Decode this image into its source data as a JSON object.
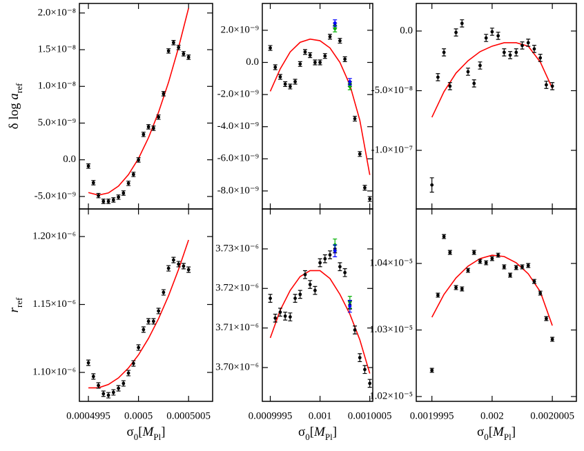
{
  "chart_data": [
    {
      "type": "scatter",
      "xlim": [
        0.00049941,
        0.00050074
      ],
      "xticks": [
        0.0004995,
        0.0005,
        0.0005005
      ],
      "xtick_labels": false,
      "ylim": [
        -6.7e-09,
        2.13e-08
      ],
      "yticks": [
        {
          "value": -5e-09,
          "label": "-5.0×10⁻⁹"
        },
        {
          "value": 0,
          "label": "0.0"
        },
        {
          "value": 5e-09,
          "label": "5.0×10⁻⁹"
        },
        {
          "value": 1e-08,
          "label": "1.0×10⁻⁸"
        },
        {
          "value": 1.5e-08,
          "label": "1.5×10⁻⁸"
        },
        {
          "value": 2e-08,
          "label": "2.0×10⁻⁸"
        }
      ],
      "ylabel": [
        {
          "text": "δ log "
        },
        {
          "text": "a",
          "italic": true
        },
        {
          "text": "ref",
          "sub": true
        }
      ],
      "series": [
        {
          "color": "#000000",
          "x": [
            0.0004995,
            0.00049955,
            0.0004996,
            0.00049965,
            0.0004997,
            0.00049975,
            0.0004998,
            0.00049985,
            0.0004999,
            0.00049995,
            0.0005,
            0.00050005,
            0.0005001,
            0.00050015,
            0.0005002,
            0.00050025,
            0.0005003,
            0.00050035,
            0.0005004,
            0.00050045,
            0.0005005
          ],
          "values": [
            -8.6e-10,
            -3.12e-09,
            -4.88e-09,
            -5.66e-09,
            -5.66e-09,
            -5.47e-09,
            -5.09e-09,
            -4.53e-09,
            -3.21e-09,
            -1.99e-09,
            -2e-11,
            3.46e-09,
            4.49e-09,
            4.3e-09,
            5.81e-09,
            9e-09,
            1.483e-08,
            1.596e-08,
            1.53e-08,
            1.445e-08,
            1.398e-08
          ],
          "errors": [
            3e-10,
            3e-10,
            3e-10,
            3e-10,
            3e-10,
            3e-10,
            3e-10,
            3e-10,
            3e-10,
            3e-10,
            3e-10,
            3e-10,
            3e-10,
            3e-10,
            3e-10,
            3e-10,
            3e-10,
            3e-10,
            3e-10,
            3e-10,
            3e-10
          ]
        }
      ],
      "fit": {
        "color": "#ff0000",
        "x": [
          0.0004995,
          0.0004996,
          0.0004997,
          0.0004998,
          0.0004999,
          0.0005,
          0.0005001,
          0.0005002,
          0.0005003,
          0.0005004,
          0.0005005
        ],
        "values": [
          -4.47e-09,
          -4.81e-09,
          -4.52e-09,
          -3.59e-09,
          -2.02e-09,
          1.7e-10,
          3.01e-09,
          6.47e-09,
          1.056e-08,
          1.53e-08,
          2.066e-08
        ]
      }
    },
    {
      "type": "scatter",
      "xlim": [
        0.00099942,
        0.00100053
      ],
      "xticks": [
        0.0009995,
        0.001,
        0.0010005
      ],
      "xtick_labels": false,
      "ylim": [
        -9.12e-09,
        3.67e-09
      ],
      "yticks": [
        {
          "value": -8e-09,
          "label": "-8.0×10⁻⁹"
        },
        {
          "value": -6e-09,
          "label": "-6.0×10⁻⁹"
        },
        {
          "value": -4e-09,
          "label": "-4.0×10⁻⁹"
        },
        {
          "value": -2e-09,
          "label": "-2.0×10⁻⁹"
        },
        {
          "value": 0,
          "label": "0.0"
        },
        {
          "value": 2e-09,
          "label": "2.0×10⁻⁹"
        }
      ],
      "series": [
        {
          "color": "#000000",
          "x": [
            0.0009995,
            0.00099955,
            0.0009996,
            0.00099965,
            0.0009997,
            0.00099975,
            0.0009998,
            0.00099985,
            0.0009999,
            0.00099995,
            0.001,
            0.00100005,
            0.0010001,
            0.00100015,
            0.0010002,
            0.00100025,
            0.0010003,
            0.00100035,
            0.0010004,
            0.00100045,
            0.0010005
          ],
          "values": [
            9e-10,
            -3e-10,
            -9e-10,
            -1.35e-09,
            -1.5e-09,
            -1.2e-09,
            -1e-10,
            6.5e-10,
            4.5e-10,
            0,
            0,
            4e-10,
            1.6e-09,
            2.3e-09,
            1.35e-09,
            2e-10,
            -1.35e-09,
            -3.5e-09,
            -5.7e-09,
            -7.8e-09,
            -8.5e-09
          ],
          "errors": [
            1.5e-10,
            1.5e-10,
            1.5e-10,
            1.5e-10,
            1.5e-10,
            1.5e-10,
            1.5e-10,
            1.5e-10,
            1.5e-10,
            1.5e-10,
            1.5e-10,
            1.5e-10,
            1.5e-10,
            1.5e-10,
            1.5e-10,
            1.5e-10,
            1.5e-10,
            1.5e-10,
            1.5e-10,
            1.5e-10,
            1.5e-10
          ]
        },
        {
          "color": "#00b000",
          "x": [
            0.00100015,
            0.0010003
          ],
          "values": [
            2.1e-09,
            -1.5e-09
          ],
          "errors": [
            2e-10,
            2e-10
          ]
        },
        {
          "color": "#0000ff",
          "x": [
            0.00100015,
            0.0010003
          ],
          "values": [
            2.45e-09,
            -1.2e-09
          ],
          "errors": [
            2e-10,
            2e-10
          ]
        }
      ],
      "fit": {
        "color": "#ff0000",
        "x": [
          0.0009995,
          0.0009996,
          0.0009997,
          0.0009998,
          0.0009999,
          0.001,
          0.0010001,
          0.0010002,
          0.0010003,
          0.0010004,
          0.0010005
        ],
        "values": [
          -1.8e-09,
          -4e-10,
          6.5e-10,
          1.25e-09,
          1.45e-09,
          1.35e-09,
          9e-10,
          0,
          -1.4e-09,
          -3.6e-09,
          -7e-09
        ]
      }
    },
    {
      "type": "scatter",
      "xlim": [
        0.00199937,
        0.0020007
      ],
      "xticks": [
        0.0019995,
        0.002,
        0.0020005
      ],
      "xtick_labels": false,
      "ylim": [
        -1.491e-07,
        2.31e-08
      ],
      "yticks": [
        {
          "value": -1e-07,
          "label": "-1.0×10⁻⁷"
        },
        {
          "value": -5e-08,
          "label": "-5.0×10⁻⁸"
        },
        {
          "value": 0,
          "label": "0.0"
        }
      ],
      "series": [
        {
          "color": "#000000",
          "x": [
            0.0019995,
            0.00199955,
            0.0019996,
            0.00199965,
            0.0019997,
            0.00199975,
            0.0019998,
            0.00199985,
            0.0019999,
            0.00199995,
            0.002,
            0.00200005,
            0.0020001,
            0.00200015,
            0.0020002,
            0.00200025,
            0.0020003,
            0.00200035,
            0.0020004,
            0.00200045,
            0.0020005
          ],
          "values": [
            -1.29e-07,
            -3.87e-08,
            -1.79e-08,
            -4.62e-08,
            -1.2e-09,
            6.4e-09,
            -3.41e-08,
            -4.39e-08,
            -2.89e-08,
            -5.8e-09,
            -6e-10,
            -4e-09,
            -1.79e-08,
            -2.02e-08,
            -1.79e-08,
            -1.21e-08,
            -9.8e-09,
            -1.5e-08,
            -2.25e-08,
            -4.51e-08,
            -4.62e-08
          ],
          "errors": [
            6e-09,
            3e-09,
            3e-09,
            3e-09,
            3e-09,
            3e-09,
            3e-09,
            3e-09,
            3e-09,
            3e-09,
            3e-09,
            3e-09,
            3e-09,
            3e-09,
            3e-09,
            3e-09,
            3e-09,
            3e-09,
            3e-09,
            3e-09,
            3e-09
          ]
        }
      ],
      "fit": {
        "color": "#ff0000",
        "x": [
          0.0019995,
          0.0019996,
          0.0019997,
          0.0019998,
          0.0019999,
          0.002,
          0.0020001,
          0.0020002,
          0.0020003,
          0.0020004,
          0.0020005
        ],
        "values": [
          -7.23e-08,
          -5.09e-08,
          -3.53e-08,
          -2.49e-08,
          -1.73e-08,
          -1.27e-08,
          -9.8e-09,
          -9.8e-09,
          -1.27e-08,
          -2.6e-08,
          -4.8e-08
        ]
      }
    },
    {
      "type": "scatter",
      "xlim": [
        0.00049941,
        0.00050074
      ],
      "xticks": [
        0.0004995,
        0.0005,
        0.0005005
      ],
      "xtick_labels": true,
      "ylim": [
        1.0787e-06,
        1.2203e-06
      ],
      "yticks": [
        {
          "value": 1.1e-06,
          "label": "1.10×10⁻⁶"
        },
        {
          "value": 1.15e-06,
          "label": "1.15×10⁻⁶"
        },
        {
          "value": 1.2e-06,
          "label": "1.20×10⁻⁶"
        }
      ],
      "ylabel": [
        {
          "text": "r",
          "italic": true
        },
        {
          "text": "ref",
          "sub": true
        }
      ],
      "xlabel": [
        {
          "text": "σ"
        },
        {
          "text": "0",
          "sub": true
        },
        {
          "text": "["
        },
        {
          "text": "M",
          "italic": true
        },
        {
          "text": "Pl",
          "sub": true
        },
        {
          "text": "]"
        }
      ],
      "series": [
        {
          "color": "#000000",
          "x": [
            0.0004995,
            0.00049955,
            0.0004996,
            0.00049965,
            0.0004997,
            0.00049975,
            0.0004998,
            0.00049985,
            0.0004999,
            0.00049995,
            0.0005,
            0.00050005,
            0.0005001,
            0.00050015,
            0.0005002,
            0.00050025,
            0.0005003,
            0.00050035,
            0.0005004,
            0.00050045,
            0.0005005
          ],
          "values": [
            1.1071e-06,
            1.097e-06,
            1.0904e-06,
            1.0843e-06,
            1.0832e-06,
            1.0853e-06,
            1.0883e-06,
            1.0919e-06,
            1.0995e-06,
            1.1066e-06,
            1.1183e-06,
            1.1315e-06,
            1.1376e-06,
            1.1376e-06,
            1.1452e-06,
            1.1589e-06,
            1.1766e-06,
            1.1827e-06,
            1.1797e-06,
            1.1782e-06,
            1.1756e-06
          ],
          "errors": [
            2e-09,
            2e-09,
            2e-09,
            2e-09,
            2e-09,
            2e-09,
            2e-09,
            2e-09,
            2e-09,
            2e-09,
            2e-09,
            2e-09,
            2e-09,
            2e-09,
            2e-09,
            2e-09,
            2e-09,
            2e-09,
            2e-09,
            2e-09,
            2e-09
          ]
        }
      ],
      "fit": {
        "color": "#ff0000",
        "x": [
          0.0004995,
          0.0004996,
          0.0004997,
          0.0004998,
          0.0004999,
          0.0005,
          0.0005001,
          0.0005002,
          0.0005003,
          0.0005004,
          0.0005005
        ],
        "values": [
          1.08863e-06,
          1.08863e-06,
          1.09112e-06,
          1.09594e-06,
          1.10325e-06,
          1.1129e-06,
          1.12503e-06,
          1.13949e-06,
          1.1564e-06,
          1.17579e-06,
          1.19746e-06
        ]
      }
    },
    {
      "type": "scatter",
      "xlim": [
        0.00099942,
        0.00100053
      ],
      "xticks": [
        0.0009995,
        0.001,
        0.0010005
      ],
      "xtick_labels": true,
      "ylim": [
        3.69145e-06,
        3.7401e-06
      ],
      "yticks": [
        {
          "value": 3.7e-06,
          "label": "3.70×10⁻⁶"
        },
        {
          "value": 3.71e-06,
          "label": "3.71×10⁻⁶"
        },
        {
          "value": 3.72e-06,
          "label": "3.72×10⁻⁶"
        },
        {
          "value": 3.73e-06,
          "label": "3.73×10⁻⁶"
        }
      ],
      "xlabel": [
        {
          "text": "σ"
        },
        {
          "text": "0",
          "sub": true
        },
        {
          "text": "["
        },
        {
          "text": "M",
          "italic": true
        },
        {
          "text": "Pl",
          "sub": true
        },
        {
          "text": "]"
        }
      ],
      "series": [
        {
          "color": "#000000",
          "x": [
            0.0009995,
            0.00099955,
            0.0009996,
            0.00099965,
            0.0009997,
            0.00099975,
            0.0009998,
            0.00099985,
            0.0009999,
            0.00099995,
            0.001,
            0.00100005,
            0.0010001,
            0.00100015,
            0.0010002,
            0.00100025,
            0.0010003,
            0.00100035,
            0.0010004,
            0.00100045,
            0.0010005
          ],
          "values": [
            3.7175e-06,
            3.7125e-06,
            3.714e-06,
            3.713e-06,
            3.7128e-06,
            3.7175e-06,
            3.7185e-06,
            3.7235e-06,
            3.721e-06,
            3.7195e-06,
            3.7265e-06,
            3.7275e-06,
            3.7285e-06,
            3.73e-06,
            3.7255e-06,
            3.724e-06,
            3.7158e-06,
            3.7095e-06,
            3.7025e-06,
            3.6995e-06,
            3.696e-06
          ],
          "errors": [
            1e-09,
            1e-09,
            1e-09,
            1e-09,
            1e-09,
            1e-09,
            1e-09,
            1e-09,
            1e-09,
            1e-09,
            1e-09,
            1e-09,
            1e-09,
            1e-09,
            1e-09,
            1e-09,
            1e-09,
            1e-09,
            1e-09,
            1e-09,
            1e-09
          ]
        },
        {
          "color": "#00b000",
          "x": [
            0.00100015,
            0.0010003
          ],
          "values": [
            3.731e-06,
            3.7165e-06
          ],
          "errors": [
            1.5e-09,
            1.5e-09
          ]
        },
        {
          "color": "#0000ff",
          "x": [
            0.00100015,
            0.0010003
          ],
          "values": [
            3.7295e-06,
            3.7155e-06
          ],
          "errors": [
            1.5e-09,
            1.5e-09
          ]
        }
      ],
      "fit": {
        "color": "#ff0000",
        "x": [
          0.0009995,
          0.0009996,
          0.0009997,
          0.0009998,
          0.0009999,
          0.001,
          0.0010001,
          0.0010002,
          0.0010003,
          0.0010004,
          0.0010005
        ],
        "values": [
          3.7075e-06,
          3.7145e-06,
          3.7195e-06,
          3.723e-06,
          3.7245e-06,
          3.7245e-06,
          3.7225e-06,
          3.7185e-06,
          3.7135e-06,
          3.707e-06,
          3.6985e-06
        ]
      }
    },
    {
      "type": "scatter",
      "xlim": [
        0.00199937,
        0.0020007
      ],
      "xticks": [
        0.0019995,
        0.002,
        0.0020005
      ],
      "xtick_labels": true,
      "ylim": [
        1.019275e-05,
        1.04819e-05
      ],
      "yticks": [
        {
          "value": 1.02e-05,
          "label": "1.02×10⁻⁵"
        },
        {
          "value": 1.03e-05,
          "label": "1.03×10⁻⁵"
        },
        {
          "value": 1.04e-05,
          "label": "1.04×10⁻⁵"
        }
      ],
      "xlabel": [
        {
          "text": "σ"
        },
        {
          "text": "0",
          "sub": true
        },
        {
          "text": "["
        },
        {
          "text": "M",
          "italic": true
        },
        {
          "text": "Pl",
          "sub": true
        },
        {
          "text": "]"
        }
      ],
      "series": [
        {
          "color": "#000000",
          "x": [
            0.0019995,
            0.00199955,
            0.0019996,
            0.00199965,
            0.0019997,
            0.00199975,
            0.0019998,
            0.00199985,
            0.0019999,
            0.00199995,
            0.002,
            0.00200005,
            0.0020001,
            0.00200015,
            0.0020002,
            0.00200025,
            0.0020003,
            0.00200035,
            0.0020004,
            0.00200045,
            0.0020005
          ],
          "values": [
            1.02394e-05,
            1.03523e-05,
            1.04404e-05,
            1.04166e-05,
            1.03637e-05,
            1.03617e-05,
            1.03896e-05,
            1.04166e-05,
            1.04031e-05,
            1.0401e-05,
            1.04073e-05,
            1.04124e-05,
            1.03948e-05,
            1.03824e-05,
            1.03938e-05,
            1.03948e-05,
            1.03969e-05,
            1.0373e-05,
            1.03554e-05,
            1.03171e-05,
            1.0286e-05
          ],
          "errors": [
            3e-09,
            3e-09,
            3e-09,
            3e-09,
            3e-09,
            3e-09,
            3e-09,
            3e-09,
            3e-09,
            3e-09,
            3e-09,
            3e-09,
            3e-09,
            3e-09,
            3e-09,
            3e-09,
            3e-09,
            3e-09,
            3e-09,
            3e-09,
            3e-09
          ]
        }
      ],
      "fit": {
        "color": "#ff0000",
        "x": [
          0.0019995,
          0.0019996,
          0.0019997,
          0.0019998,
          0.0019999,
          0.002,
          0.0020001,
          0.0020002,
          0.0020003,
          0.0020004,
          0.0020005
        ],
        "values": [
          1.03192e-05,
          1.03534e-05,
          1.03782e-05,
          1.03959e-05,
          1.04073e-05,
          1.04124e-05,
          1.04104e-05,
          1.0401e-05,
          1.03845e-05,
          1.03575e-05,
          1.03067e-05
        ]
      }
    }
  ]
}
